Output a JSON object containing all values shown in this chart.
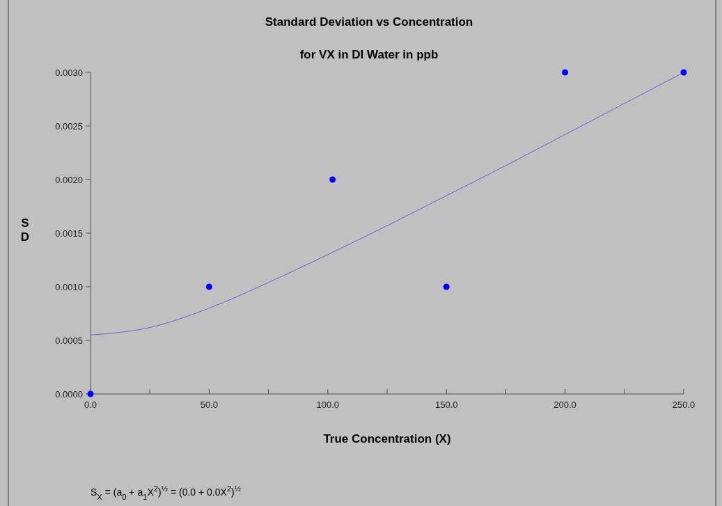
{
  "chart_data": {
    "type": "scatter",
    "title": "Standard Deviation vs Concentration",
    "subtitle": "for VX in DI Water in ppb",
    "xlabel": "True Concentration (X)",
    "ylabel": "SD",
    "series": [
      {
        "color": "#0000ff",
        "marker": "circle",
        "x": [
          0,
          50,
          102,
          150,
          200,
          250
        ],
        "values": [
          0,
          0.001,
          0.002,
          0.001,
          0.003,
          0.003
        ]
      },
      {
        "type": "line",
        "color": "#6060e0",
        "x": [
          0,
          25,
          50,
          75,
          100,
          125,
          150,
          175,
          200,
          225,
          250
        ],
        "values": [
          0.00055,
          0.00062,
          0.0008,
          0.00104,
          0.0013,
          0.00157,
          0.00185,
          0.00213,
          0.00242,
          0.00271,
          0.003
        ]
      }
    ],
    "xlim": [
      0,
      250
    ],
    "ylim": [
      0,
      0.003
    ],
    "xticks": [
      {
        "value": 0,
        "label": "0.0"
      },
      {
        "value": 25,
        "label": null
      },
      {
        "value": 50,
        "label": "50.0"
      },
      {
        "value": 75,
        "label": null
      },
      {
        "value": 100,
        "label": "100.0"
      },
      {
        "value": 125,
        "label": null
      },
      {
        "value": 150,
        "label": "150.0"
      },
      {
        "value": 175,
        "label": null
      },
      {
        "value": 200,
        "label": "200.0"
      },
      {
        "value": 225,
        "label": null
      },
      {
        "value": 250,
        "label": "250.0"
      }
    ],
    "yticks": [
      {
        "value": 0,
        "label": "0.0000"
      },
      {
        "value": 0.0005,
        "label": "0.0005"
      },
      {
        "value": 0.001,
        "label": "0.0010"
      },
      {
        "value": 0.0015,
        "label": "0.0015"
      },
      {
        "value": 0.002,
        "label": "0.0020"
      },
      {
        "value": 0.0025,
        "label": "0.0025"
      },
      {
        "value": 0.003,
        "label": "0.0030"
      }
    ],
    "grid": false,
    "annotations": [
      "S$_{X}$ = (a$_{0}$ + a$_{1}$X$^{2}$)$^{½}$ = (0.0 + 0.0X$^{2}$)$^{½}$"
    ]
  }
}
